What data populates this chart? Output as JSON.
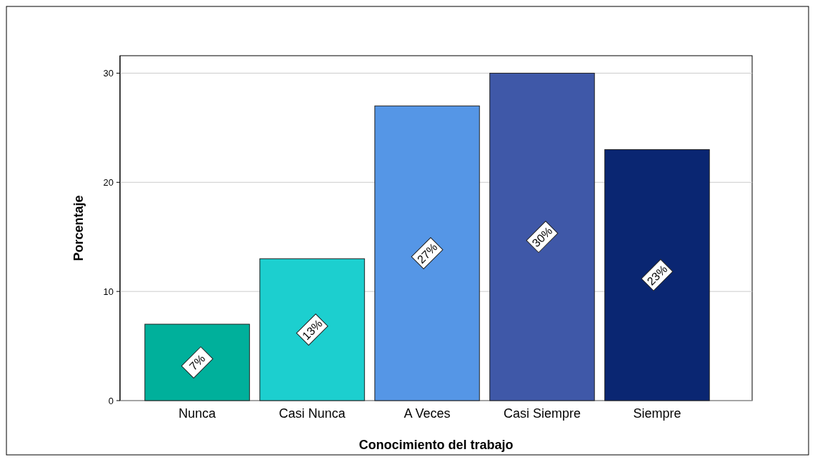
{
  "chart_data": {
    "type": "bar",
    "xlabel": "Conocimiento del trabajo",
    "ylabel": "Porcentaje",
    "categories": [
      "Nunca",
      "Casi Nunca",
      "A Veces",
      "Casi Siempre",
      "Siempre"
    ],
    "values": [
      7,
      13,
      27,
      30,
      23
    ],
    "colors": [
      "#00b09b",
      "#1ccfcf",
      "#5596e6",
      "#3f58a8",
      "#0a2672"
    ],
    "value_labels": [
      "7%",
      "13%",
      "27%",
      "30%",
      "23%"
    ],
    "ylim": [
      0,
      31.6
    ],
    "yticks": [
      0,
      10,
      20,
      30
    ],
    "grid": "y"
  }
}
